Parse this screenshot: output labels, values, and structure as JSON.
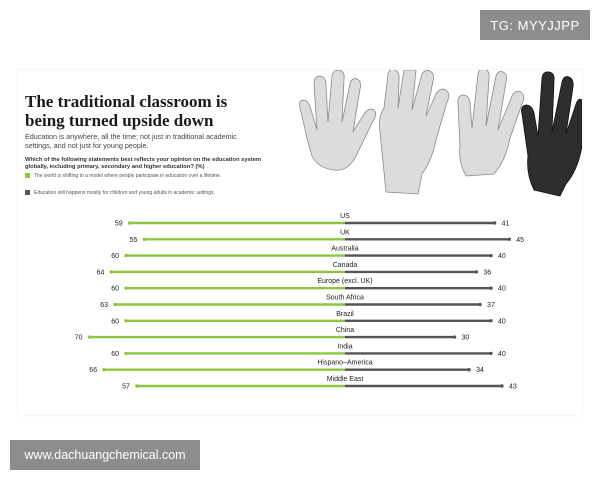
{
  "watermarks": {
    "tg": "TG: MYYJJPP",
    "url": "www.dachuangchemical.com"
  },
  "infographic": {
    "title": "The traditional classroom is being turned upside down",
    "subtitle": "Education is anywhere, all the time; not just in traditional academic settings, and not just for young people.",
    "question": "Which of the following statements best reflects your opinion on the education system globally, including primary, secondary and higher education? (%)",
    "legend": [
      {
        "label": "The world is shifting to a model where people participate in education over a lifetime.",
        "color": "#8cc63f"
      },
      {
        "label": "Education still happens mostly for children and young adults in academic settings.",
        "color": "#555555"
      }
    ]
  },
  "chart_data": {
    "type": "bar",
    "orientation": "diverging-horizontal",
    "categories": [
      "US",
      "UK",
      "Australia",
      "Canada",
      "Europe (excl. UK)",
      "South Africa",
      "Brazil",
      "China",
      "India",
      "Hispano–America",
      "Middle East"
    ],
    "series": [
      {
        "name": "The world is shifting to a model where people participate in education over a lifetime.",
        "color": "#8cc63f",
        "values": [
          59,
          55,
          60,
          64,
          60,
          63,
          60,
          70,
          60,
          66,
          57
        ]
      },
      {
        "name": "Education still happens mostly for children and young adults in academic settings.",
        "color": "#555555",
        "values": [
          41,
          45,
          40,
          36,
          40,
          37,
          40,
          30,
          40,
          34,
          43
        ]
      }
    ]
  }
}
